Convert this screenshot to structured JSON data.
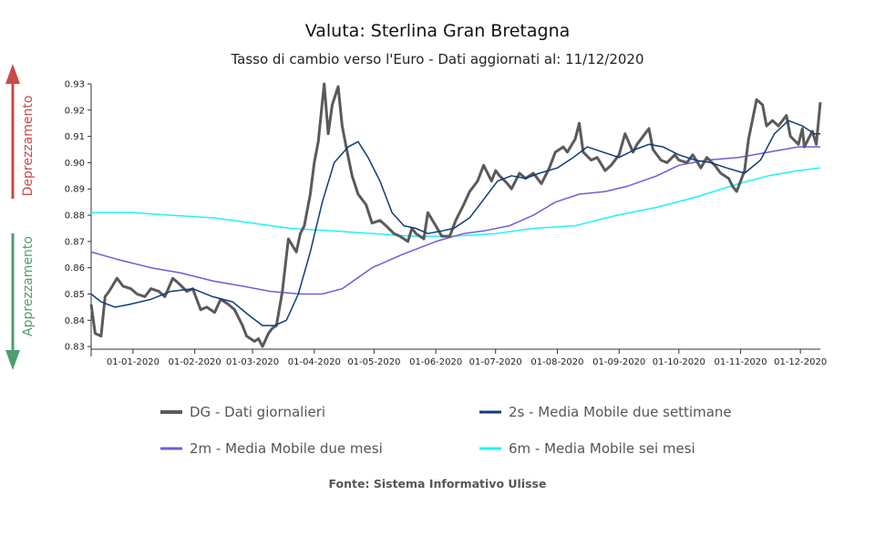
{
  "chart_data": {
    "type": "line",
    "title": "Valuta: Sterlina Gran Bretagna",
    "subtitle": "Tasso di cambio verso l'Euro - Dati aggiornati al: 11/12/2020",
    "source": "Fonte: Sistema Informativo Ulisse",
    "side_labels": {
      "up": {
        "text": "Deprezzamento",
        "color": "#c84a4a"
      },
      "down": {
        "text": "Apprezzamento",
        "color": "#4f9e6e"
      }
    },
    "x_start": "2019-12-11",
    "x_end": "2020-12-11",
    "x_ticks": [
      "01-01-2020",
      "01-02-2020",
      "01-03-2020",
      "01-04-2020",
      "01-05-2020",
      "01-06-2020",
      "01-07-2020",
      "01-08-2020",
      "01-09-2020",
      "01-10-2020",
      "01-11-2020",
      "01-12-2020"
    ],
    "y_ticks": [
      0.83,
      0.84,
      0.85,
      0.86,
      0.87,
      0.88,
      0.89,
      0.9,
      0.91,
      0.92,
      0.93
    ],
    "ylim": [
      0.829,
      0.93
    ],
    "legend_placement": "bottom",
    "series": [
      {
        "name": "DG - Dati giornalieri",
        "color": "#5a5a5a",
        "width": 3,
        "points": [
          [
            "2019-12-11",
            0.846
          ],
          [
            "2019-12-13",
            0.835
          ],
          [
            "2019-12-16",
            0.834
          ],
          [
            "2019-12-18",
            0.849
          ],
          [
            "2019-12-20",
            0.851
          ],
          [
            "2019-12-24",
            0.856
          ],
          [
            "2019-12-27",
            0.853
          ],
          [
            "2019-12-31",
            0.852
          ],
          [
            "2020-01-03",
            0.85
          ],
          [
            "2020-01-07",
            0.849
          ],
          [
            "2020-01-10",
            0.852
          ],
          [
            "2020-01-14",
            0.851
          ],
          [
            "2020-01-17",
            0.849
          ],
          [
            "2020-01-21",
            0.856
          ],
          [
            "2020-01-24",
            0.854
          ],
          [
            "2020-01-28",
            0.851
          ],
          [
            "2020-01-31",
            0.852
          ],
          [
            "2020-02-04",
            0.844
          ],
          [
            "2020-02-07",
            0.845
          ],
          [
            "2020-02-11",
            0.843
          ],
          [
            "2020-02-14",
            0.848
          ],
          [
            "2020-02-18",
            0.846
          ],
          [
            "2020-02-21",
            0.844
          ],
          [
            "2020-02-25",
            0.838
          ],
          [
            "2020-02-27",
            0.834
          ],
          [
            "2020-03-02",
            0.832
          ],
          [
            "2020-03-04",
            0.833
          ],
          [
            "2020-03-06",
            0.83
          ],
          [
            "2020-03-09",
            0.835
          ],
          [
            "2020-03-11",
            0.837
          ],
          [
            "2020-03-13",
            0.838
          ],
          [
            "2020-03-16",
            0.851
          ],
          [
            "2020-03-19",
            0.871
          ],
          [
            "2020-03-23",
            0.866
          ],
          [
            "2020-03-25",
            0.873
          ],
          [
            "2020-03-27",
            0.876
          ],
          [
            "2020-03-30",
            0.888
          ],
          [
            "2020-04-01",
            0.9
          ],
          [
            "2020-04-03",
            0.908
          ],
          [
            "2020-04-06",
            0.93
          ],
          [
            "2020-04-08",
            0.911
          ],
          [
            "2020-04-10",
            0.922
          ],
          [
            "2020-04-13",
            0.929
          ],
          [
            "2020-04-15",
            0.914
          ],
          [
            "2020-04-17",
            0.906
          ],
          [
            "2020-04-20",
            0.895
          ],
          [
            "2020-04-23",
            0.888
          ],
          [
            "2020-04-27",
            0.884
          ],
          [
            "2020-04-30",
            0.877
          ],
          [
            "2020-05-04",
            0.878
          ],
          [
            "2020-05-07",
            0.876
          ],
          [
            "2020-05-11",
            0.873
          ],
          [
            "2020-05-14",
            0.872
          ],
          [
            "2020-05-18",
            0.87
          ],
          [
            "2020-05-20",
            0.875
          ],
          [
            "2020-05-22",
            0.873
          ],
          [
            "2020-05-26",
            0.871
          ],
          [
            "2020-05-28",
            0.881
          ],
          [
            "2020-06-01",
            0.876
          ],
          [
            "2020-06-04",
            0.872
          ],
          [
            "2020-06-08",
            0.872
          ],
          [
            "2020-06-11",
            0.878
          ],
          [
            "2020-06-15",
            0.884
          ],
          [
            "2020-06-18",
            0.889
          ],
          [
            "2020-06-22",
            0.893
          ],
          [
            "2020-06-25",
            0.899
          ],
          [
            "2020-06-29",
            0.893
          ],
          [
            "2020-07-01",
            0.897
          ],
          [
            "2020-07-03",
            0.895
          ],
          [
            "2020-07-07",
            0.892
          ],
          [
            "2020-07-09",
            0.89
          ],
          [
            "2020-07-13",
            0.896
          ],
          [
            "2020-07-16",
            0.894
          ],
          [
            "2020-07-20",
            0.896
          ],
          [
            "2020-07-22",
            0.894
          ],
          [
            "2020-07-24",
            0.892
          ],
          [
            "2020-07-28",
            0.898
          ],
          [
            "2020-07-31",
            0.904
          ],
          [
            "2020-08-04",
            0.906
          ],
          [
            "2020-08-06",
            0.904
          ],
          [
            "2020-08-10",
            0.909
          ],
          [
            "2020-08-12",
            0.915
          ],
          [
            "2020-08-14",
            0.904
          ],
          [
            "2020-08-18",
            0.901
          ],
          [
            "2020-08-21",
            0.902
          ],
          [
            "2020-08-25",
            0.897
          ],
          [
            "2020-08-28",
            0.899
          ],
          [
            "2020-09-01",
            0.903
          ],
          [
            "2020-09-04",
            0.911
          ],
          [
            "2020-09-08",
            0.904
          ],
          [
            "2020-09-10",
            0.907
          ],
          [
            "2020-09-14",
            0.911
          ],
          [
            "2020-09-16",
            0.913
          ],
          [
            "2020-09-18",
            0.905
          ],
          [
            "2020-09-22",
            0.901
          ],
          [
            "2020-09-25",
            0.9
          ],
          [
            "2020-09-29",
            0.903
          ],
          [
            "2020-10-01",
            0.901
          ],
          [
            "2020-10-05",
            0.9
          ],
          [
            "2020-10-08",
            0.903
          ],
          [
            "2020-10-12",
            0.898
          ],
          [
            "2020-10-15",
            0.902
          ],
          [
            "2020-10-19",
            0.899
          ],
          [
            "2020-10-22",
            0.896
          ],
          [
            "2020-10-26",
            0.894
          ],
          [
            "2020-10-28",
            0.891
          ],
          [
            "2020-10-30",
            0.889
          ],
          [
            "2020-11-03",
            0.897
          ],
          [
            "2020-11-05",
            0.909
          ],
          [
            "2020-11-09",
            0.924
          ],
          [
            "2020-11-12",
            0.922
          ],
          [
            "2020-11-14",
            0.914
          ],
          [
            "2020-11-17",
            0.916
          ],
          [
            "2020-11-20",
            0.914
          ],
          [
            "2020-11-24",
            0.918
          ],
          [
            "2020-11-26",
            0.91
          ],
          [
            "2020-11-30",
            0.907
          ],
          [
            "2020-12-02",
            0.913
          ],
          [
            "2020-12-03",
            0.906
          ],
          [
            "2020-12-07",
            0.912
          ],
          [
            "2020-12-09",
            0.907
          ],
          [
            "2020-12-11",
            0.923
          ]
        ]
      },
      {
        "name": "2s - Media Mobile due settimane",
        "color": "#0d3d75",
        "width": 1.5,
        "points": [
          [
            "2019-12-11",
            0.85
          ],
          [
            "2019-12-16",
            0.847
          ],
          [
            "2019-12-23",
            0.845
          ],
          [
            "2019-12-30",
            0.846
          ],
          [
            "2020-01-10",
            0.848
          ],
          [
            "2020-01-20",
            0.851
          ],
          [
            "2020-01-31",
            0.852
          ],
          [
            "2020-02-10",
            0.849
          ],
          [
            "2020-02-20",
            0.847
          ],
          [
            "2020-02-28",
            0.842
          ],
          [
            "2020-03-06",
            0.838
          ],
          [
            "2020-03-12",
            0.838
          ],
          [
            "2020-03-18",
            0.84
          ],
          [
            "2020-03-24",
            0.85
          ],
          [
            "2020-03-30",
            0.866
          ],
          [
            "2020-04-05",
            0.885
          ],
          [
            "2020-04-11",
            0.9
          ],
          [
            "2020-04-18",
            0.906
          ],
          [
            "2020-04-23",
            0.908
          ],
          [
            "2020-04-28",
            0.902
          ],
          [
            "2020-05-04",
            0.893
          ],
          [
            "2020-05-10",
            0.881
          ],
          [
            "2020-05-16",
            0.876
          ],
          [
            "2020-05-22",
            0.875
          ],
          [
            "2020-05-28",
            0.873
          ],
          [
            "2020-06-04",
            0.874
          ],
          [
            "2020-06-10",
            0.875
          ],
          [
            "2020-06-18",
            0.879
          ],
          [
            "2020-06-25",
            0.886
          ],
          [
            "2020-07-02",
            0.893
          ],
          [
            "2020-07-09",
            0.895
          ],
          [
            "2020-07-16",
            0.894
          ],
          [
            "2020-07-23",
            0.896
          ],
          [
            "2020-08-01",
            0.898
          ],
          [
            "2020-08-09",
            0.902
          ],
          [
            "2020-08-16",
            0.906
          ],
          [
            "2020-08-24",
            0.904
          ],
          [
            "2020-09-01",
            0.902
          ],
          [
            "2020-09-09",
            0.905
          ],
          [
            "2020-09-16",
            0.907
          ],
          [
            "2020-09-23",
            0.906
          ],
          [
            "2020-10-01",
            0.903
          ],
          [
            "2020-10-09",
            0.901
          ],
          [
            "2020-10-17",
            0.9
          ],
          [
            "2020-10-25",
            0.898
          ],
          [
            "2020-11-03",
            0.896
          ],
          [
            "2020-11-11",
            0.901
          ],
          [
            "2020-11-18",
            0.911
          ],
          [
            "2020-11-25",
            0.916
          ],
          [
            "2020-12-02",
            0.914
          ],
          [
            "2020-12-08",
            0.911
          ],
          [
            "2020-12-11",
            0.911
          ]
        ]
      },
      {
        "name": "2m - Media Mobile due mesi",
        "color": "#6b5fd8",
        "width": 1.5,
        "points": [
          [
            "2019-12-11",
            0.866
          ],
          [
            "2019-12-25",
            0.863
          ],
          [
            "2020-01-10",
            0.86
          ],
          [
            "2020-01-25",
            0.858
          ],
          [
            "2020-02-10",
            0.855
          ],
          [
            "2020-02-25",
            0.853
          ],
          [
            "2020-03-10",
            0.851
          ],
          [
            "2020-03-25",
            0.85
          ],
          [
            "2020-04-05",
            0.85
          ],
          [
            "2020-04-15",
            0.852
          ],
          [
            "2020-04-30",
            0.86
          ],
          [
            "2020-05-15",
            0.865
          ],
          [
            "2020-06-01",
            0.87
          ],
          [
            "2020-06-15",
            0.873
          ],
          [
            "2020-06-25",
            0.874
          ],
          [
            "2020-07-08",
            0.876
          ],
          [
            "2020-07-20",
            0.88
          ],
          [
            "2020-07-31",
            0.885
          ],
          [
            "2020-08-12",
            0.888
          ],
          [
            "2020-08-25",
            0.889
          ],
          [
            "2020-09-05",
            0.891
          ],
          [
            "2020-09-20",
            0.895
          ],
          [
            "2020-10-01",
            0.899
          ],
          [
            "2020-10-15",
            0.901
          ],
          [
            "2020-10-31",
            0.902
          ],
          [
            "2020-11-15",
            0.904
          ],
          [
            "2020-11-30",
            0.906
          ],
          [
            "2020-12-11",
            0.906
          ]
        ]
      },
      {
        "name": "6m - Media Mobile sei mesi",
        "color": "#1ef4f1",
        "width": 1.5,
        "points": [
          [
            "2019-12-11",
            0.881
          ],
          [
            "2020-01-01",
            0.881
          ],
          [
            "2020-01-20",
            0.88
          ],
          [
            "2020-02-10",
            0.879
          ],
          [
            "2020-03-01",
            0.877
          ],
          [
            "2020-03-20",
            0.875
          ],
          [
            "2020-04-10",
            0.874
          ],
          [
            "2020-05-01",
            0.873
          ],
          [
            "2020-05-20",
            0.872
          ],
          [
            "2020-06-10",
            0.872
          ],
          [
            "2020-07-01",
            0.873
          ],
          [
            "2020-07-20",
            0.875
          ],
          [
            "2020-08-10",
            0.876
          ],
          [
            "2020-08-31",
            0.88
          ],
          [
            "2020-09-20",
            0.883
          ],
          [
            "2020-10-10",
            0.887
          ],
          [
            "2020-10-31",
            0.892
          ],
          [
            "2020-11-15",
            0.895
          ],
          [
            "2020-11-30",
            0.897
          ],
          [
            "2020-12-11",
            0.898
          ]
        ]
      }
    ]
  }
}
